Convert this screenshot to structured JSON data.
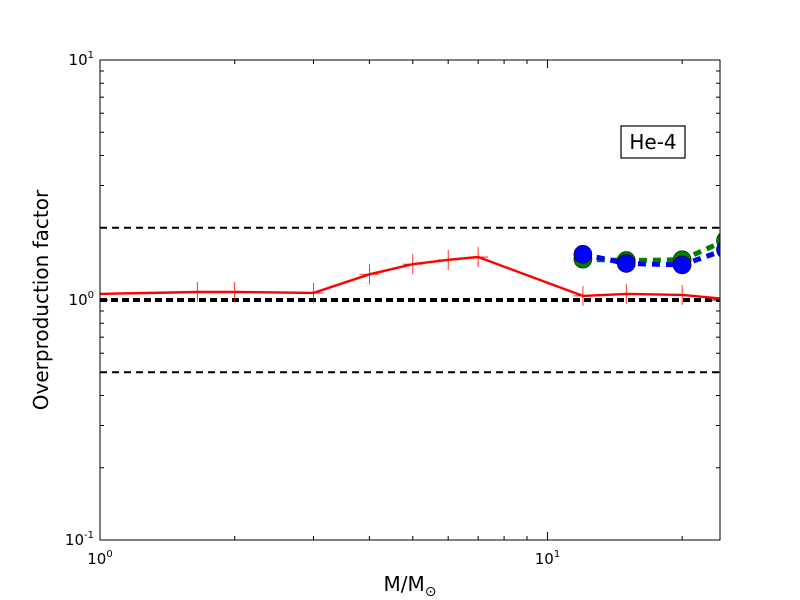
{
  "chart_data": {
    "type": "line",
    "xscale": "log",
    "yscale": "log",
    "xlim": [
      1,
      24.3
    ],
    "ylim": [
      0.1,
      10
    ],
    "xlabel": {
      "main": "M/M",
      "subscript": "⊙"
    },
    "ylabel": "Overproduction factor",
    "x_ticks": [
      {
        "base": "10",
        "exp": "0",
        "value": 1
      },
      {
        "base": "10",
        "exp": "1",
        "value": 10
      }
    ],
    "y_ticks": [
      {
        "base": "10",
        "exp": "-1",
        "value": 0.1
      },
      {
        "base": "10",
        "exp": "0",
        "value": 1
      },
      {
        "base": "10",
        "exp": "1",
        "value": 10
      }
    ],
    "annotation": "He-4",
    "annotation_position": "top-right",
    "grid": false,
    "reference_lines": [
      {
        "y": 2.0,
        "style": "dashed",
        "color": "#000000",
        "width": "thin"
      },
      {
        "y": 1.0,
        "style": "dashed",
        "color": "#000000",
        "width": "thick"
      },
      {
        "y": 0.5,
        "style": "dashed",
        "color": "#000000",
        "width": "thin"
      }
    ],
    "series": [
      {
        "style": "solid-with-plus-markers",
        "color": "#ff0000",
        "x": [
          1,
          1.65,
          2,
          3,
          4,
          5,
          6,
          7,
          12,
          15,
          20,
          25
        ],
        "y": [
          1.06,
          1.08,
          1.08,
          1.07,
          1.28,
          1.41,
          1.47,
          1.51,
          1.04,
          1.06,
          1.05,
          1.01
        ],
        "marker_x": [
          1.65,
          2,
          3,
          4,
          5,
          6,
          7,
          12,
          15,
          20
        ]
      },
      {
        "style": "dashed-with-circles",
        "color": "#008000",
        "x": [
          12,
          15,
          20,
          25
        ],
        "y": [
          1.48,
          1.46,
          1.47,
          1.77
        ]
      },
      {
        "style": "dashed-with-circles",
        "color": "#0000ff",
        "x": [
          12,
          15,
          20,
          25
        ],
        "y": [
          1.55,
          1.42,
          1.4,
          1.62
        ]
      }
    ]
  }
}
